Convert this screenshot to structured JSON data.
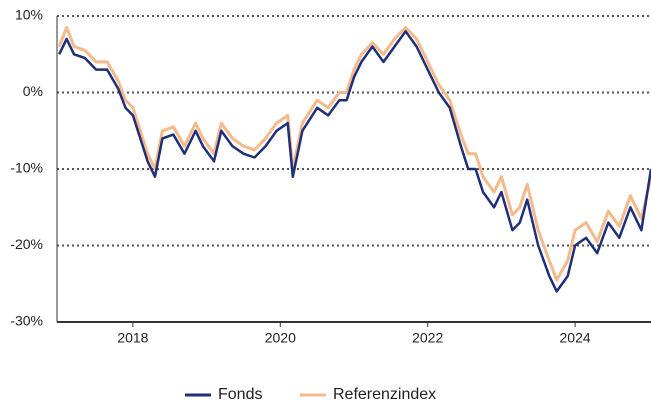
{
  "chart_data": {
    "type": "line",
    "x": [
      2017.0,
      2017.1,
      2017.2,
      2017.35,
      2017.5,
      2017.65,
      2017.8,
      2017.9,
      2018.0,
      2018.1,
      2018.2,
      2018.3,
      2018.4,
      2018.55,
      2018.7,
      2018.85,
      2018.95,
      2019.1,
      2019.2,
      2019.35,
      2019.5,
      2019.65,
      2019.8,
      2019.95,
      2020.1,
      2020.17,
      2020.3,
      2020.5,
      2020.65,
      2020.8,
      2020.9,
      2021.0,
      2021.1,
      2021.25,
      2021.4,
      2021.55,
      2021.7,
      2021.85,
      2022.0,
      2022.15,
      2022.3,
      2022.45,
      2022.55,
      2022.65,
      2022.75,
      2022.9,
      2023.0,
      2023.15,
      2023.25,
      2023.35,
      2023.5,
      2023.65,
      2023.75,
      2023.9,
      2024.0,
      2024.15,
      2024.3,
      2024.45,
      2024.6,
      2024.75,
      2024.9,
      2025.03
    ],
    "series": [
      {
        "name": "Referenzindex",
        "color": "#f5b98c",
        "values": [
          6,
          8.5,
          6,
          5.5,
          4,
          4,
          1.5,
          -1,
          -2,
          -5,
          -8,
          -10,
          -5,
          -4.5,
          -7,
          -4,
          -6,
          -8,
          -4,
          -6,
          -7,
          -7.5,
          -6,
          -4,
          -3,
          -10,
          -4,
          -1,
          -2,
          0,
          0,
          3,
          5,
          6.5,
          5,
          7,
          8.5,
          7,
          4,
          1,
          -1,
          -5.5,
          -8,
          -8,
          -11,
          -13,
          -11,
          -16,
          -15,
          -12,
          -18,
          -22,
          -24.5,
          -22,
          -18,
          -17,
          -19.5,
          -15.5,
          -17.5,
          -13.5,
          -16.5,
          -11
        ]
      },
      {
        "name": "Fonds",
        "color": "#1f2f7a",
        "values": [
          5,
          7,
          5,
          4.5,
          3,
          3,
          0.5,
          -2,
          -3,
          -6,
          -9,
          -11,
          -6,
          -5.5,
          -8,
          -5,
          -7,
          -9,
          -5,
          -7,
          -8,
          -8.5,
          -7,
          -5,
          -4,
          -11,
          -5,
          -2,
          -3,
          -1,
          -1,
          2,
          4,
          6,
          4,
          6,
          8,
          6,
          3,
          0,
          -2,
          -7,
          -10,
          -10,
          -13,
          -15,
          -13,
          -18,
          -17,
          -14,
          -20,
          -24,
          -26,
          -24,
          -20,
          -19,
          -21,
          -17,
          -19,
          -15,
          -18,
          -10
        ]
      }
    ],
    "xlim": [
      2016.97,
      2025.03
    ],
    "xticks": [
      2018,
      2020,
      2022,
      2024
    ],
    "ylim": [
      -30,
      10
    ],
    "yticks": [
      {
        "value": -30,
        "label": "-30%"
      },
      {
        "value": -20,
        "label": "-20%"
      },
      {
        "value": -10,
        "label": "-10%"
      },
      {
        "value": 0,
        "label": "0%"
      },
      {
        "value": 10,
        "label": "10%"
      }
    ],
    "grid": true
  }
}
